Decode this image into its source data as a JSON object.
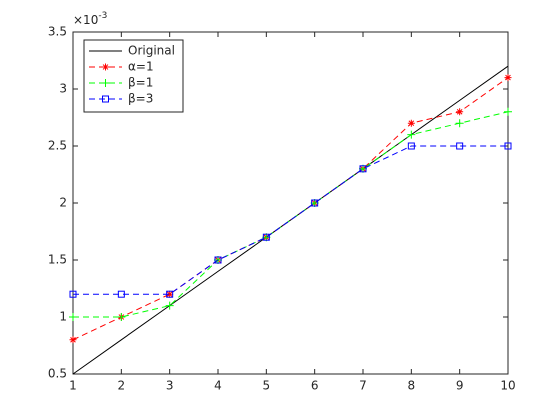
{
  "chart_data": {
    "type": "line",
    "y_multiplier": {
      "base": "×10",
      "exponent": "-3"
    },
    "x": [
      1,
      2,
      3,
      4,
      5,
      6,
      7,
      8,
      9,
      10
    ],
    "xlim": [
      1,
      10
    ],
    "xticks": [
      1,
      2,
      3,
      4,
      5,
      6,
      7,
      8,
      9,
      10
    ],
    "ylim": [
      0.5,
      3.5
    ],
    "yticks": [
      0.5,
      1,
      1.5,
      2,
      2.5,
      3,
      3.5
    ],
    "legend": "upper left",
    "series": [
      {
        "name": "Original",
        "color": "#000000",
        "dash": "solid",
        "marker": "none",
        "values": [
          0.5,
          0.8,
          1.1,
          1.4,
          1.7,
          2.0,
          2.3,
          2.6,
          2.9,
          3.2
        ]
      },
      {
        "name": "α=1",
        "color": "#ff0000",
        "dash": "dashed",
        "marker": "star",
        "values": [
          0.8,
          1.0,
          1.2,
          1.5,
          1.7,
          2.0,
          2.3,
          2.7,
          2.8,
          3.1
        ]
      },
      {
        "name": "β=1",
        "color": "#00ff00",
        "dash": "dashed",
        "marker": "plus",
        "values": [
          1.0,
          1.0,
          1.1,
          1.5,
          1.7,
          2.0,
          2.3,
          2.6,
          2.7,
          2.8
        ]
      },
      {
        "name": "β=3",
        "color": "#0000ff",
        "dash": "dashed",
        "marker": "square",
        "values": [
          1.2,
          1.2,
          1.2,
          1.5,
          1.7,
          2.0,
          2.3,
          2.5,
          2.5,
          2.5
        ]
      }
    ]
  }
}
